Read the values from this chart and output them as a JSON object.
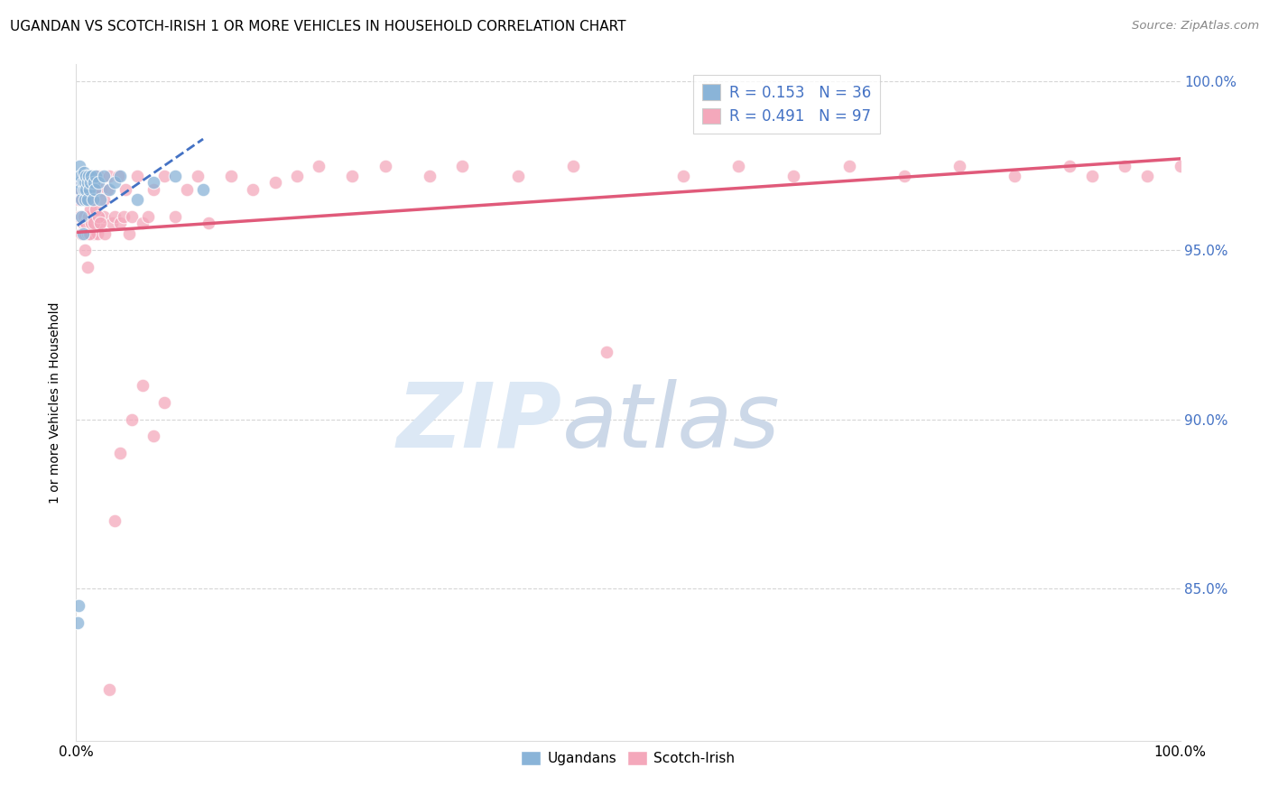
{
  "title": "UGANDAN VS SCOTCH-IRISH 1 OR MORE VEHICLES IN HOUSEHOLD CORRELATION CHART",
  "source": "Source: ZipAtlas.com",
  "ylabel": "1 or more Vehicles in Household",
  "legend_label1": "Ugandans",
  "legend_label2": "Scotch-Irish",
  "R_ugandan": 0.153,
  "N_ugandan": 36,
  "R_scotch": 0.491,
  "N_scotch": 97,
  "ugandan_color": "#8ab4d8",
  "scotch_color": "#f4a8bb",
  "ugandan_line_color": "#4472c4",
  "scotch_line_color": "#e05a7a",
  "ugandan_x": [
    0.001,
    0.002,
    0.003,
    0.003,
    0.004,
    0.004,
    0.005,
    0.005,
    0.006,
    0.006,
    0.007,
    0.007,
    0.008,
    0.008,
    0.009,
    0.009,
    0.01,
    0.01,
    0.011,
    0.012,
    0.013,
    0.014,
    0.015,
    0.016,
    0.017,
    0.018,
    0.02,
    0.022,
    0.025,
    0.03,
    0.035,
    0.04,
    0.055,
    0.07,
    0.09,
    0.115
  ],
  "ugandan_y": [
    0.84,
    0.845,
    0.97,
    0.975,
    0.968,
    0.972,
    0.96,
    0.965,
    0.955,
    0.97,
    0.968,
    0.973,
    0.965,
    0.97,
    0.968,
    0.972,
    0.97,
    0.965,
    0.972,
    0.968,
    0.97,
    0.972,
    0.965,
    0.97,
    0.968,
    0.972,
    0.97,
    0.965,
    0.972,
    0.968,
    0.97,
    0.972,
    0.965,
    0.97,
    0.972,
    0.968
  ],
  "scotch_x": [
    0.002,
    0.003,
    0.004,
    0.005,
    0.005,
    0.006,
    0.006,
    0.007,
    0.007,
    0.008,
    0.008,
    0.009,
    0.009,
    0.01,
    0.01,
    0.011,
    0.011,
    0.012,
    0.012,
    0.013,
    0.013,
    0.014,
    0.015,
    0.015,
    0.016,
    0.017,
    0.018,
    0.019,
    0.02,
    0.021,
    0.022,
    0.023,
    0.025,
    0.026,
    0.028,
    0.03,
    0.032,
    0.035,
    0.038,
    0.04,
    0.043,
    0.045,
    0.048,
    0.05,
    0.055,
    0.06,
    0.065,
    0.07,
    0.08,
    0.09,
    0.1,
    0.11,
    0.12,
    0.14,
    0.16,
    0.18,
    0.2,
    0.22,
    0.25,
    0.28,
    0.32,
    0.35,
    0.4,
    0.45,
    0.48,
    0.55,
    0.6,
    0.65,
    0.7,
    0.75,
    0.8,
    0.85,
    0.9,
    0.92,
    0.95,
    0.97,
    1.0,
    0.008,
    0.009,
    0.01,
    0.011,
    0.012,
    0.013,
    0.014,
    0.015,
    0.016,
    0.018,
    0.02,
    0.022,
    0.025,
    0.03,
    0.035,
    0.04,
    0.05,
    0.06,
    0.07,
    0.08
  ],
  "scotch_y": [
    0.965,
    0.96,
    0.968,
    0.955,
    0.97,
    0.958,
    0.972,
    0.96,
    0.968,
    0.955,
    0.972,
    0.958,
    0.97,
    0.955,
    0.968,
    0.96,
    0.972,
    0.958,
    0.965,
    0.955,
    0.972,
    0.96,
    0.958,
    0.968,
    0.955,
    0.96,
    0.968,
    0.955,
    0.972,
    0.96,
    0.958,
    0.968,
    0.96,
    0.955,
    0.968,
    0.972,
    0.958,
    0.96,
    0.972,
    0.958,
    0.96,
    0.968,
    0.955,
    0.96,
    0.972,
    0.958,
    0.96,
    0.968,
    0.972,
    0.96,
    0.968,
    0.972,
    0.958,
    0.972,
    0.968,
    0.97,
    0.972,
    0.975,
    0.972,
    0.975,
    0.972,
    0.975,
    0.972,
    0.975,
    0.92,
    0.972,
    0.975,
    0.972,
    0.975,
    0.972,
    0.975,
    0.972,
    0.975,
    0.972,
    0.975,
    0.972,
    0.975,
    0.95,
    0.958,
    0.945,
    0.96,
    0.955,
    0.962,
    0.958,
    0.965,
    0.958,
    0.962,
    0.96,
    0.958,
    0.965,
    0.82,
    0.87,
    0.89,
    0.9,
    0.91,
    0.895,
    0.905
  ],
  "xlim": [
    0.0,
    1.0
  ],
  "ylim": [
    0.805,
    1.005
  ],
  "yticks": [
    0.85,
    0.9,
    0.95,
    1.0
  ],
  "ytick_labels": [
    "85.0%",
    "90.0%",
    "95.0%",
    "100.0%"
  ],
  "xtick_positions": [
    0.0,
    1.0
  ],
  "xtick_labels": [
    "0.0%",
    "100.0%"
  ],
  "grid_color": "#cccccc",
  "title_fontsize": 11,
  "axis_fontsize": 11,
  "right_tick_color": "#4472c4",
  "bottom_legend_labels": [
    "Ugandans",
    "Scotch-Irish"
  ]
}
